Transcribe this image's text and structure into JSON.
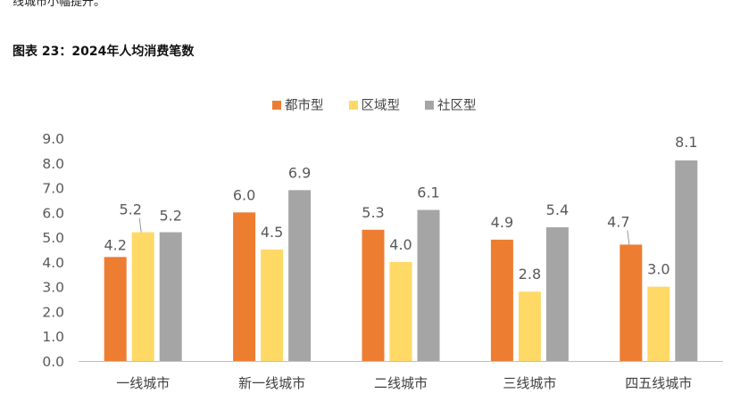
{
  "intro_text": "线城市小幅提升。",
  "figure_title": "图表 23：2024年人均消费笔数",
  "colors": {
    "series0": "#ED7D31",
    "series1": "#FFD966",
    "series2": "#A5A5A5",
    "axis": "#BFBFBF",
    "label": "#595959"
  },
  "chart_data": {
    "type": "bar",
    "title": "图表 23：2024年人均消费笔数",
    "categories": [
      "一线城市",
      "新一线城市",
      "二线城市",
      "三线城市",
      "四五线城市"
    ],
    "series": [
      {
        "name": "都市型",
        "values": [
          4.2,
          6.0,
          5.3,
          4.9,
          4.7
        ]
      },
      {
        "name": "区域型",
        "values": [
          5.2,
          4.5,
          4.0,
          2.8,
          3.0
        ]
      },
      {
        "name": "社区型",
        "values": [
          5.2,
          6.9,
          6.1,
          5.4,
          8.1
        ]
      }
    ],
    "value_labels": [
      [
        "4.2",
        "6.0",
        "5.3",
        "4.9",
        "4.7"
      ],
      [
        "5.2",
        "4.5",
        "4.0",
        "2.8",
        "3.0"
      ],
      [
        "5.2",
        "6.9",
        "6.1",
        "5.4",
        "8.1"
      ]
    ],
    "yticks": [
      "0.0",
      "1.0",
      "2.0",
      "3.0",
      "4.0",
      "5.0",
      "6.0",
      "7.0",
      "8.0",
      "9.0"
    ],
    "ylim": [
      0,
      9
    ],
    "xlabel": "",
    "ylabel": "",
    "legend_position": "top",
    "grid": false
  }
}
